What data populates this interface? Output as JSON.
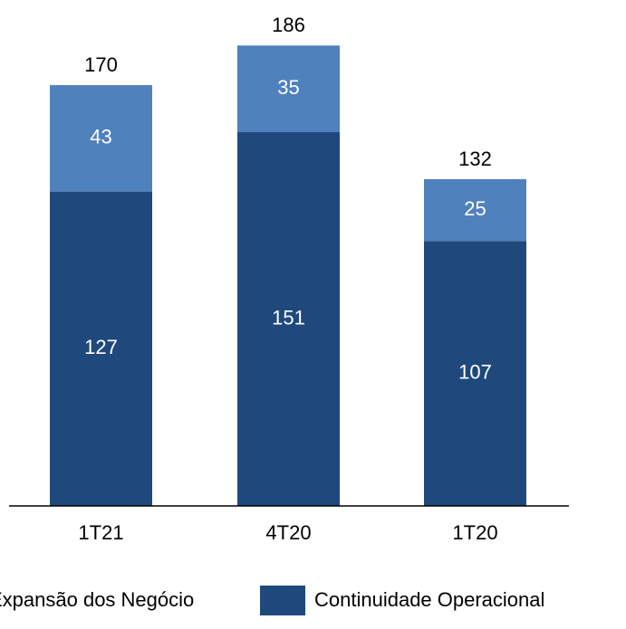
{
  "chart_data": {
    "type": "stacked_bar",
    "categories": [
      "1T21",
      "4T20",
      "1T20"
    ],
    "series": [
      {
        "name": "Continuidade Operacional",
        "color": "#1f497d",
        "values": [
          127,
          151,
          107
        ]
      },
      {
        "name": "Expansão dos Negócio",
        "color": "#4f81bd",
        "values": [
          43,
          35,
          25
        ]
      }
    ],
    "totals": [
      170,
      186,
      132
    ]
  }
}
